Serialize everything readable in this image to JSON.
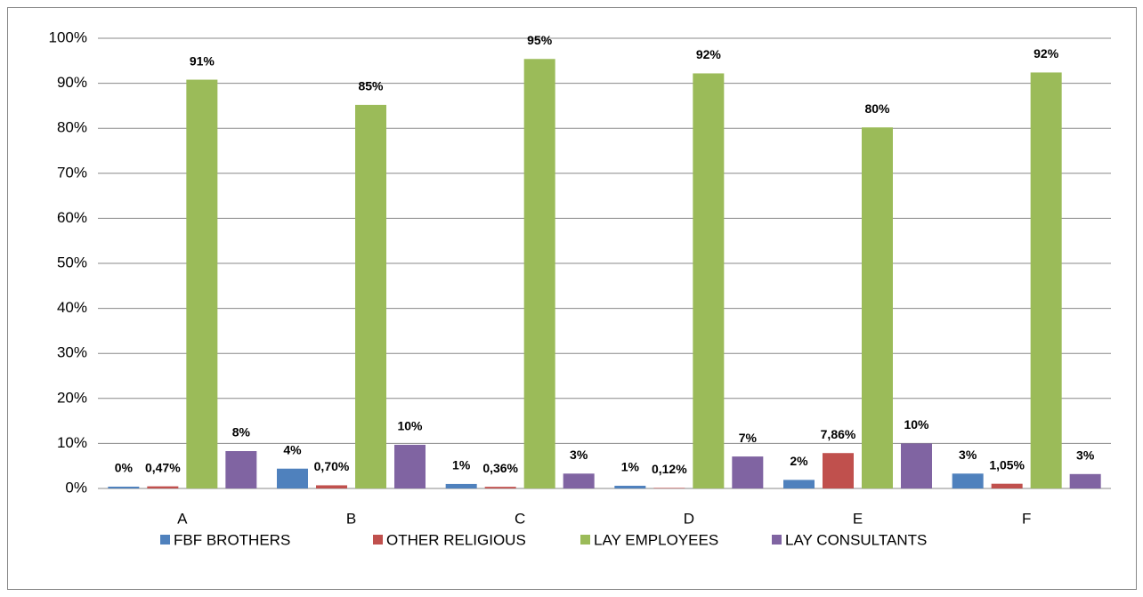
{
  "chart_data": {
    "type": "bar",
    "categories": [
      "A",
      "B",
      "C",
      "D",
      "E",
      "F"
    ],
    "series": [
      {
        "name": "FBF BROTHERS",
        "color": "#4f81bd",
        "values": [
          0.4,
          4.4,
          1.0,
          0.6,
          1.9,
          3.3
        ],
        "value_labels": [
          "0%",
          "4%",
          "1%",
          "1%",
          "2%",
          "3%"
        ]
      },
      {
        "name": "OTHER RELIGIOUS",
        "color": "#c0504d",
        "values": [
          0.47,
          0.7,
          0.36,
          0.12,
          7.86,
          1.05
        ],
        "value_labels": [
          "0,47%",
          "0,70%",
          "0,36%",
          "0,12%",
          "7,86%",
          "1,05%"
        ]
      },
      {
        "name": "LAY EMPLOYEES",
        "color": "#9bbb59",
        "values": [
          90.8,
          85.2,
          95.4,
          92.2,
          80.2,
          92.4
        ],
        "value_labels": [
          "91%",
          "85%",
          "95%",
          "92%",
          "80%",
          "92%"
        ]
      },
      {
        "name": "LAY CONSULTANTS",
        "color": "#8064a2",
        "values": [
          8.3,
          9.7,
          3.3,
          7.1,
          10.0,
          3.2
        ],
        "value_labels": [
          "8%",
          "10%",
          "3%",
          "7%",
          "10%",
          "3%"
        ]
      }
    ],
    "ylim": [
      0,
      100
    ],
    "yticks": [
      {
        "value": 0,
        "label": "0%"
      },
      {
        "value": 10,
        "label": "10%"
      },
      {
        "value": 20,
        "label": "20%"
      },
      {
        "value": 30,
        "label": "30%"
      },
      {
        "value": 40,
        "label": "40%"
      },
      {
        "value": 50,
        "label": "50%"
      },
      {
        "value": 60,
        "label": "60%"
      },
      {
        "value": 70,
        "label": "70%"
      },
      {
        "value": 80,
        "label": "80%"
      },
      {
        "value": 90,
        "label": "90%"
      },
      {
        "value": 100,
        "label": "100%"
      }
    ],
    "grid": true,
    "legend": "bottom"
  }
}
